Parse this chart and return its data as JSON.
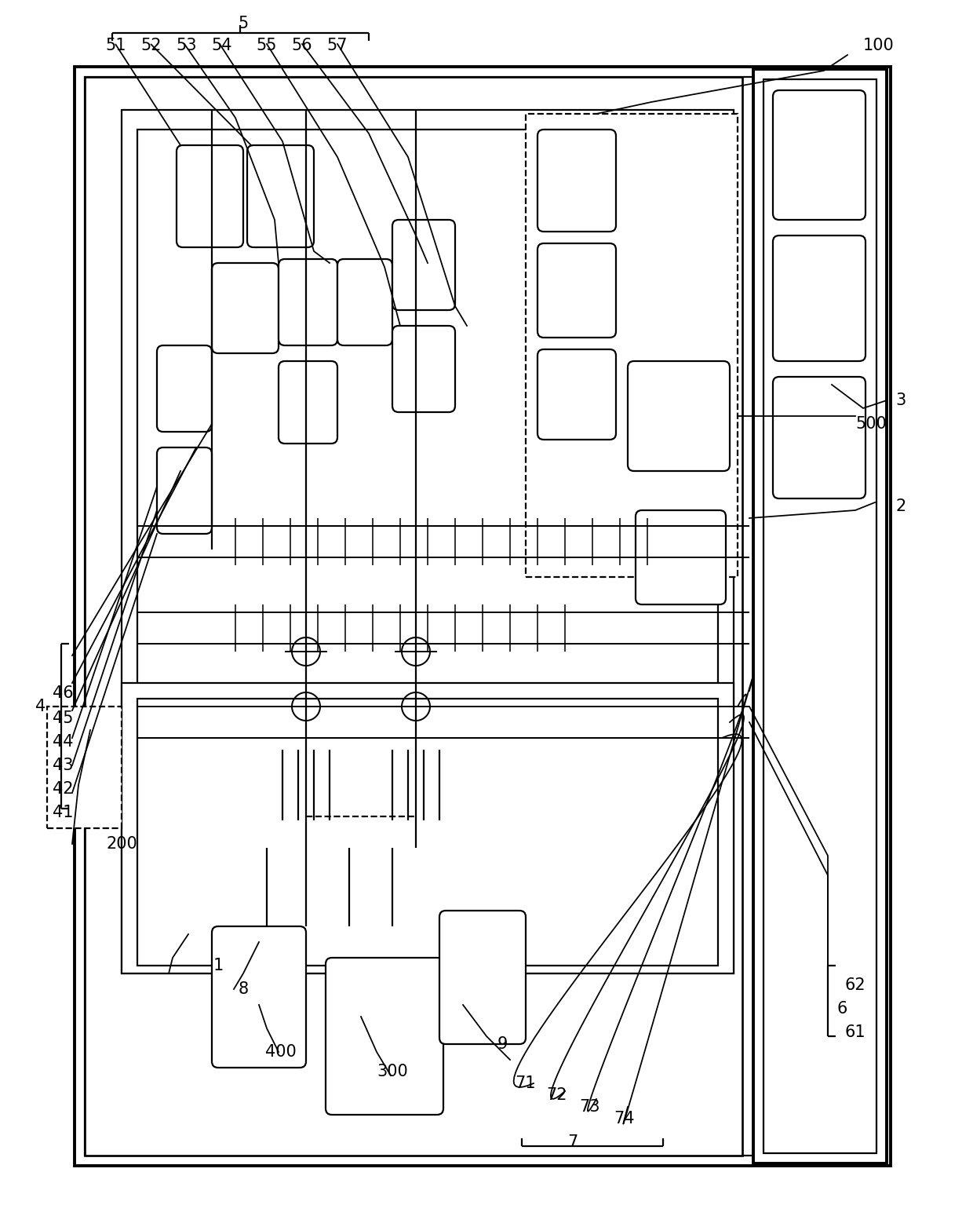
{
  "bg_color": "#ffffff",
  "lc": "#000000",
  "lw": 1.6,
  "tlw": 2.8,
  "fig_w": 12.4,
  "fig_h": 15.63
}
